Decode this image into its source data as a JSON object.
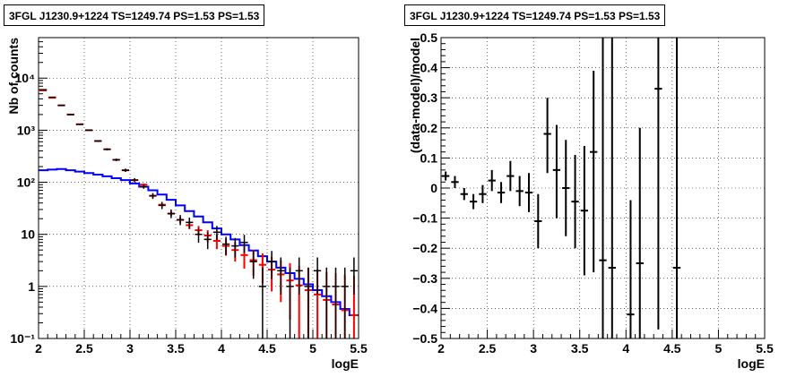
{
  "chart_data": [
    {
      "type": "histogram",
      "title": "3FGL J1230.9+1224 TS=1249.74 PS=1.53 PS=1.53",
      "xlabel": "logE",
      "ylabel": "Nb of counts",
      "xlim": [
        2,
        5.5
      ],
      "ylim": [
        0.1,
        60000
      ],
      "yscale": "log",
      "grid": true,
      "xticks": [
        "2",
        "2.5",
        "3",
        "3.5",
        "4",
        "4.5",
        "5",
        "5.5"
      ],
      "yticks": [
        "10⁻¹",
        "1",
        "10",
        "10²",
        "10³",
        "10⁴"
      ],
      "bin_edges": [
        2.0,
        2.1,
        2.2,
        2.3,
        2.4,
        2.5,
        2.6,
        2.7,
        2.8,
        2.9,
        3.0,
        3.1,
        3.2,
        3.3,
        3.4,
        3.5,
        3.6,
        3.7,
        3.8,
        3.9,
        4.0,
        4.1,
        4.2,
        4.3,
        4.4,
        4.5,
        4.6,
        4.7,
        4.8,
        4.9,
        5.0,
        5.1,
        5.2,
        5.3,
        5.4,
        5.5
      ],
      "series": [
        {
          "color": "#0000ff",
          "style": "step",
          "values": [
            170,
            175,
            180,
            170,
            160,
            150,
            140,
            130,
            120,
            110,
            95,
            82,
            70,
            58,
            46,
            36,
            28,
            22,
            17,
            13,
            10,
            8,
            6.2,
            4.9,
            3.8,
            3.0,
            2.3,
            1.8,
            1.4,
            1.1,
            0.85,
            0.65,
            0.5,
            0.37,
            0.28
          ]
        },
        {
          "color": "#ff0000",
          "style": "points_with_errors",
          "values": [
            5800,
            4200,
            3000,
            2000,
            1300,
            1000,
            620,
            430,
            270,
            170,
            110,
            90,
            55,
            37,
            25,
            19,
            15,
            12,
            9.5,
            7.5,
            6,
            5,
            4,
            3.2,
            2.6,
            2.1,
            1.7,
            1.3,
            1.05,
            0.85,
            0.7,
            0.55,
            0.45,
            0.35,
            0.28
          ],
          "err_low": [
            5700,
            4100,
            2950,
            1950,
            1260,
            970,
            600,
            415,
            260,
            163,
            105,
            85,
            51,
            34,
            22.5,
            16.5,
            12.5,
            9.5,
            7,
            5.2,
            3.9,
            3.0,
            2.2,
            1.6,
            1.15,
            0.8,
            0.5,
            0.23,
            0.0,
            0.0,
            0.0,
            0.0,
            0.0,
            0.0,
            0.0
          ],
          "err_high": [
            5900,
            4300,
            3050,
            2050,
            1340,
            1030,
            640,
            445,
            280,
            177,
            115,
            95,
            59,
            40,
            27.5,
            21.5,
            17.5,
            14.5,
            12,
            10,
            8.3,
            7.2,
            6.0,
            5.0,
            4.3,
            3.7,
            3.2,
            2.8,
            2.5,
            2.3,
            2.1,
            1.9,
            1.8,
            1.7,
            1.6
          ]
        },
        {
          "color": "#000000",
          "style": "points_with_errors",
          "values": [
            6000,
            4300,
            3000,
            2000,
            1300,
            1000,
            620,
            430,
            270,
            170,
            110,
            82,
            55,
            36,
            25,
            19,
            17,
            10,
            8,
            11,
            6.5,
            6,
            7,
            3,
            1,
            3,
            2,
            1,
            2,
            1,
            2,
            1,
            1,
            1,
            2
          ],
          "err_low": [
            5920,
            4230,
            2950,
            1950,
            1260,
            970,
            600,
            410,
            255,
            158,
            100,
            75,
            48,
            30.5,
            20.5,
            15,
            13,
            6.9,
            5.2,
            7.8,
            4,
            3.6,
            4.4,
            1.4,
            0.1,
            1.4,
            0.7,
            0.1,
            0.7,
            0.1,
            0.7,
            0.1,
            0.1,
            0.1,
            0.7
          ],
          "err_high": [
            6080,
            4370,
            3050,
            2050,
            1340,
            1030,
            640,
            450,
            285,
            183,
            120,
            89,
            62,
            42,
            30,
            23.5,
            21,
            13.2,
            11,
            14.5,
            9,
            8.5,
            9.8,
            4.8,
            2.3,
            4.8,
            3.6,
            2.3,
            3.6,
            2.3,
            3.6,
            2.3,
            2.3,
            2.3,
            3.6
          ]
        }
      ]
    },
    {
      "type": "scatter",
      "title": "3FGL J1230.9+1224 TS=1249.74 PS=1.53 PS=1.53",
      "xlabel": "logE",
      "ylabel": "(data-model)/model",
      "xlim": [
        2,
        5.5
      ],
      "ylim": [
        -0.5,
        0.5
      ],
      "grid": true,
      "xticks": [
        "2",
        "2.5",
        "3",
        "3.5",
        "4",
        "4.5",
        "5",
        "5.5"
      ],
      "yticks": [
        "−0.5",
        "−0.4",
        "−0.3",
        "−0.2",
        "−0.1",
        "0",
        "0.1",
        "0.2",
        "0.3",
        "0.4",
        "0.5"
      ],
      "series": [
        {
          "color": "#000000",
          "x": [
            2.05,
            2.15,
            2.25,
            2.35,
            2.45,
            2.55,
            2.65,
            2.75,
            2.85,
            2.95,
            3.05,
            3.15,
            3.25,
            3.35,
            3.45,
            3.55,
            3.65,
            3.75,
            3.85,
            4.05,
            4.15,
            4.35,
            4.55
          ],
          "y": [
            0.04,
            0.02,
            -0.02,
            -0.045,
            -0.02,
            0.025,
            -0.015,
            0.04,
            -0.01,
            -0.015,
            -0.11,
            0.18,
            0.06,
            0.0,
            -0.045,
            -0.075,
            0.12,
            -0.24,
            -0.265,
            -0.42,
            -0.25,
            0.33,
            -0.265
          ],
          "y_low": [
            0.025,
            0.0,
            -0.04,
            -0.07,
            -0.05,
            -0.01,
            -0.05,
            -0.01,
            -0.06,
            -0.08,
            -0.2,
            0.05,
            -0.1,
            -0.16,
            -0.2,
            -0.29,
            -0.28,
            -0.5,
            -0.5,
            -0.5,
            -0.5,
            -0.47,
            -0.5
          ],
          "y_high": [
            0.055,
            0.04,
            0.0,
            -0.02,
            0.01,
            0.06,
            0.02,
            0.09,
            0.04,
            0.05,
            -0.02,
            0.3,
            0.21,
            0.16,
            0.11,
            0.14,
            0.39,
            0.5,
            0.5,
            -0.04,
            0.2,
            0.5,
            0.5
          ]
        }
      ]
    }
  ]
}
